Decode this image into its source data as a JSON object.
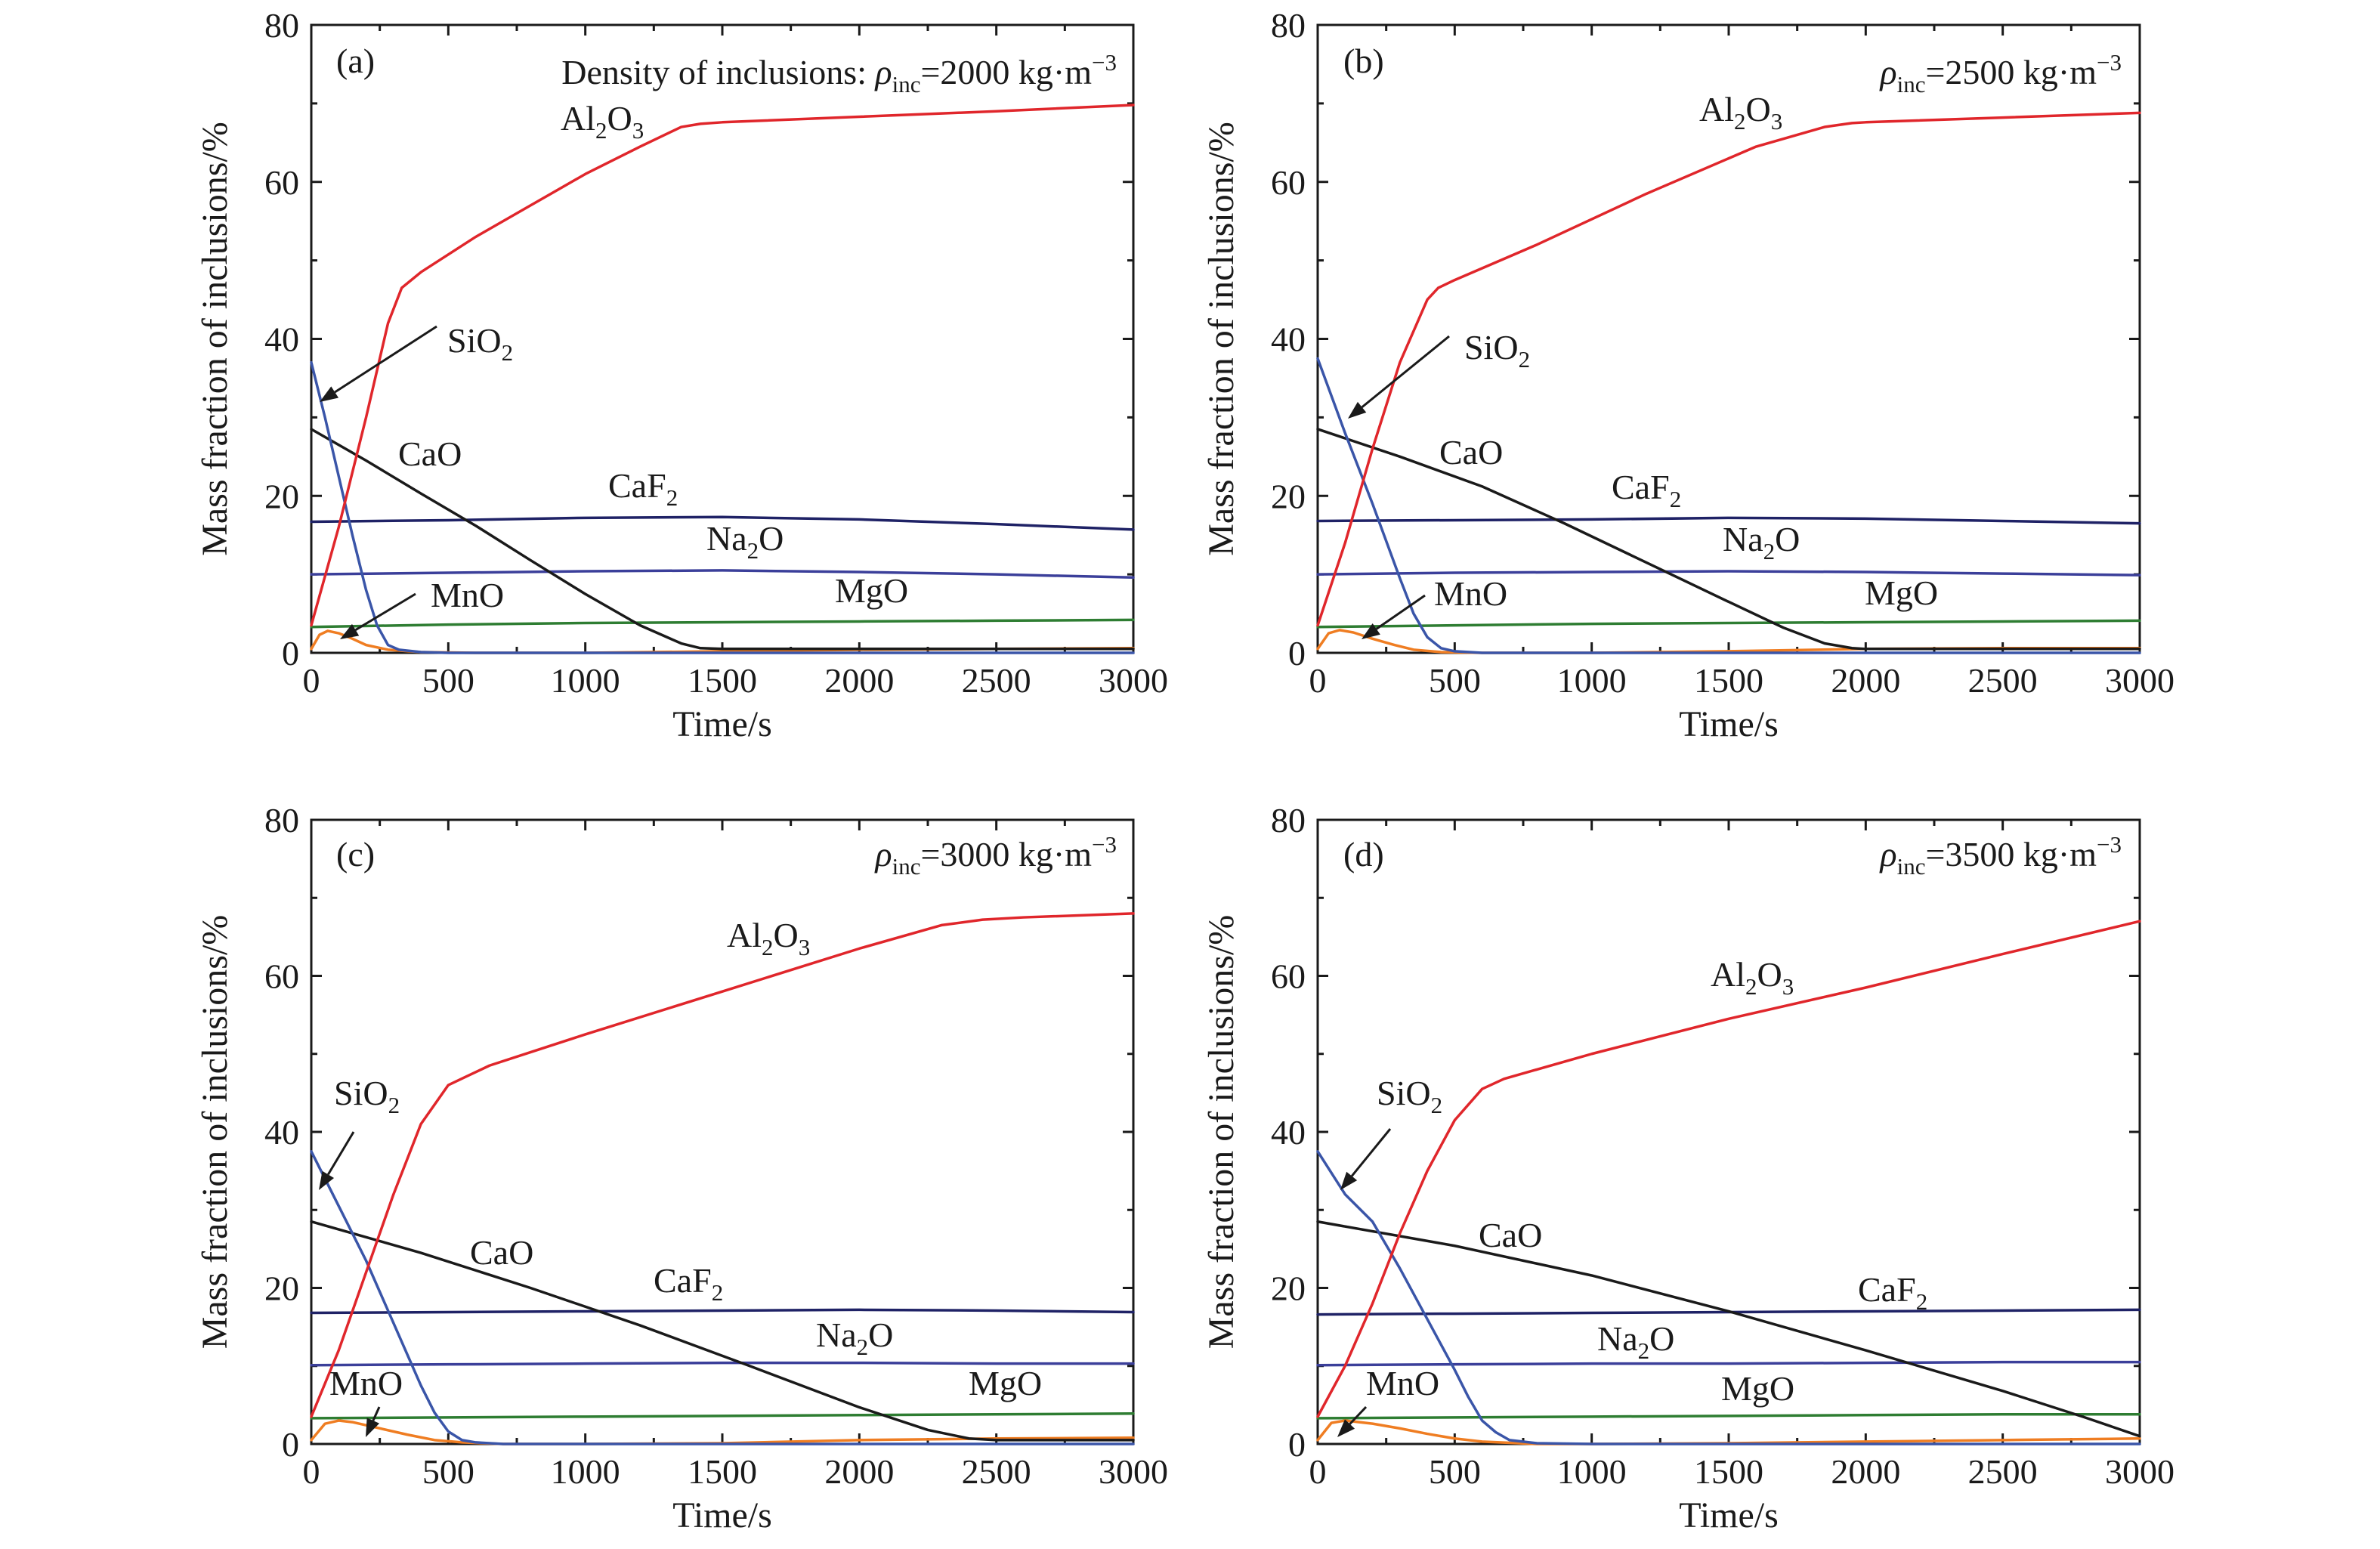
{
  "figure": {
    "panels": [
      {
        "tag": "(a)",
        "annotation": [
          {
            "t": "Density of inclusions: "
          },
          {
            "t": "ρ",
            "style": "italic"
          },
          {
            "t": "inc",
            "shift": "sub"
          },
          {
            "t": "=2000 kg·m"
          },
          {
            "t": "−3",
            "shift": "super"
          }
        ]
      },
      {
        "tag": "(b)",
        "annotation": [
          {
            "t": "ρ",
            "style": "italic"
          },
          {
            "t": "inc",
            "shift": "sub"
          },
          {
            "t": "=2500 kg·m"
          },
          {
            "t": "−3",
            "shift": "super"
          }
        ]
      },
      {
        "tag": "(c)",
        "annotation": [
          {
            "t": "ρ",
            "style": "italic"
          },
          {
            "t": "inc",
            "shift": "sub"
          },
          {
            "t": "=3000 kg·m"
          },
          {
            "t": "−3",
            "shift": "super"
          }
        ]
      },
      {
        "tag": "(d)",
        "annotation": [
          {
            "t": "ρ",
            "style": "italic"
          },
          {
            "t": "inc",
            "shift": "sub"
          },
          {
            "t": "=3500 kg·m"
          },
          {
            "t": "−3",
            "shift": "super"
          }
        ]
      }
    ]
  },
  "species_labels": {
    "Al2O3": [
      {
        "t": "Al"
      },
      {
        "t": "2",
        "shift": "sub"
      },
      {
        "t": "O"
      },
      {
        "t": "3",
        "shift": "sub"
      }
    ],
    "SiO2": [
      {
        "t": "SiO"
      },
      {
        "t": "2",
        "shift": "sub"
      }
    ],
    "CaO": [
      {
        "t": "CaO"
      }
    ],
    "CaF2": [
      {
        "t": "CaF"
      },
      {
        "t": "2",
        "shift": "sub"
      }
    ],
    "Na2O": [
      {
        "t": "Na"
      },
      {
        "t": "2",
        "shift": "sub"
      },
      {
        "t": "O"
      }
    ],
    "MgO": [
      {
        "t": "MgO"
      }
    ],
    "MnO": [
      {
        "t": "MnO"
      }
    ]
  },
  "colors": {
    "Al2O3": "#e0262b",
    "SiO2": "#3a55a8",
    "CaO": "#1a1a1a",
    "CaF2": "#1f2266",
    "Na2O": "#3b3f9a",
    "MgO": "#2e7d32",
    "MnO": "#ef7d22"
  },
  "chart_data": [
    {
      "type": "line",
      "panel": "(a)",
      "xlabel": "Time/s",
      "ylabel": "Mass fraction of inclusions/%",
      "xlim": [
        0,
        3000
      ],
      "ylim": [
        0,
        80
      ],
      "xticks": [
        0,
        500,
        1000,
        1500,
        2000,
        2500,
        3000
      ],
      "yticks": [
        0,
        20,
        40,
        60,
        80
      ],
      "grid": false,
      "series": [
        {
          "name": "Al2O3",
          "x": [
            0,
            100,
            200,
            280,
            330,
            400,
            600,
            800,
            1000,
            1200,
            1350,
            1420,
            1500,
            2000,
            2500,
            3000
          ],
          "y": [
            3.5,
            16,
            30,
            42,
            46.5,
            48.5,
            53,
            57,
            61,
            64.5,
            67,
            67.4,
            67.6,
            68.3,
            69,
            69.8
          ]
        },
        {
          "name": "SiO2",
          "x": [
            0,
            50,
            100,
            150,
            200,
            240,
            280,
            320,
            400,
            500,
            1000,
            2000,
            3000
          ],
          "y": [
            37,
            30,
            22.5,
            15,
            8,
            3.5,
            1,
            0.4,
            0.1,
            0,
            0,
            0,
            0
          ]
        },
        {
          "name": "CaO",
          "x": [
            0,
            200,
            400,
            600,
            800,
            1000,
            1200,
            1350,
            1420,
            1500,
            2000,
            2500,
            3000
          ],
          "y": [
            28.5,
            24.5,
            20.3,
            16.2,
            11.8,
            7.5,
            3.5,
            1.2,
            0.6,
            0.5,
            0.5,
            0.5,
            0.5
          ]
        },
        {
          "name": "CaF2",
          "x": [
            0,
            500,
            1000,
            1500,
            2000,
            2500,
            3000
          ],
          "y": [
            16.7,
            16.9,
            17.2,
            17.3,
            17,
            16.4,
            15.7
          ]
        },
        {
          "name": "Na2O",
          "x": [
            0,
            500,
            1000,
            1500,
            2000,
            2500,
            3000
          ],
          "y": [
            10,
            10.2,
            10.4,
            10.5,
            10.3,
            10,
            9.6
          ]
        },
        {
          "name": "MgO",
          "x": [
            0,
            500,
            1000,
            1500,
            2000,
            2500,
            3000
          ],
          "y": [
            3.3,
            3.6,
            3.8,
            3.9,
            4,
            4.1,
            4.2
          ]
        },
        {
          "name": "MnO",
          "x": [
            0,
            30,
            60,
            100,
            150,
            200,
            280,
            400,
            600,
            1000,
            1500,
            2000,
            2500,
            3000
          ],
          "y": [
            0.5,
            2.3,
            2.8,
            2.5,
            1.8,
            1,
            0.4,
            0.1,
            0,
            0,
            0.2,
            0.4,
            0.5,
            0.6
          ]
        }
      ],
      "annotations": [
        "Al2O3",
        "SiO2",
        "CaO",
        "CaF2",
        "Na2O",
        "MgO",
        "MnO"
      ]
    },
    {
      "type": "line",
      "panel": "(b)",
      "xlabel": "Time/s",
      "ylabel": "Mass fraction of inclusions/%",
      "xlim": [
        0,
        3000
      ],
      "ylim": [
        0,
        80
      ],
      "xticks": [
        0,
        500,
        1000,
        1500,
        2000,
        2500,
        3000
      ],
      "yticks": [
        0,
        20,
        40,
        60,
        80
      ],
      "grid": false,
      "series": [
        {
          "name": "Al2O3",
          "x": [
            0,
            100,
            200,
            300,
            400,
            440,
            500,
            800,
            1200,
            1600,
            1850,
            1950,
            2000,
            2500,
            3000
          ],
          "y": [
            3.5,
            14,
            26,
            37,
            45,
            46.5,
            47.5,
            52,
            58.5,
            64.5,
            67,
            67.5,
            67.6,
            68.2,
            68.8
          ]
        },
        {
          "name": "SiO2",
          "x": [
            0,
            100,
            200,
            300,
            350,
            400,
            450,
            500,
            600,
            1000,
            2000,
            3000
          ],
          "y": [
            37.5,
            28,
            19,
            9.5,
            5,
            2,
            0.6,
            0.2,
            0,
            0,
            0,
            0
          ]
        },
        {
          "name": "CaO",
          "x": [
            0,
            300,
            600,
            900,
            1200,
            1500,
            1700,
            1850,
            1950,
            2000,
            2500,
            3000
          ],
          "y": [
            28.5,
            25,
            21.2,
            16.5,
            11.5,
            6.5,
            3.2,
            1.2,
            0.6,
            0.5,
            0.5,
            0.5
          ]
        },
        {
          "name": "CaF2",
          "x": [
            0,
            500,
            1000,
            1500,
            2000,
            2500,
            3000
          ],
          "y": [
            16.8,
            16.9,
            17,
            17.2,
            17.1,
            16.8,
            16.5
          ]
        },
        {
          "name": "Na2O",
          "x": [
            0,
            500,
            1000,
            1500,
            2000,
            2500,
            3000
          ],
          "y": [
            10,
            10.2,
            10.3,
            10.4,
            10.3,
            10.1,
            9.9
          ]
        },
        {
          "name": "MgO",
          "x": [
            0,
            500,
            1000,
            1500,
            2000,
            2500,
            3000
          ],
          "y": [
            3.3,
            3.5,
            3.7,
            3.8,
            3.9,
            4,
            4.1
          ]
        },
        {
          "name": "MnO",
          "x": [
            0,
            40,
            80,
            130,
            200,
            280,
            350,
            450,
            600,
            1000,
            1500,
            2000,
            2500,
            3000
          ],
          "y": [
            0.5,
            2.5,
            2.9,
            2.6,
            1.8,
            1,
            0.4,
            0.1,
            0,
            0,
            0.2,
            0.5,
            0.6,
            0.6
          ]
        }
      ],
      "annotations": [
        "Al2O3",
        "SiO2",
        "CaO",
        "CaF2",
        "Na2O",
        "MgO",
        "MnO"
      ]
    },
    {
      "type": "line",
      "panel": "(c)",
      "xlabel": "Time/s",
      "ylabel": "Mass fraction of inclusions/%",
      "xlim": [
        0,
        3000
      ],
      "ylim": [
        0,
        80
      ],
      "xticks": [
        0,
        500,
        1000,
        1500,
        2000,
        2500,
        3000
      ],
      "yticks": [
        0,
        20,
        40,
        60,
        80
      ],
      "grid": false,
      "series": [
        {
          "name": "Al2O3",
          "x": [
            0,
            100,
            200,
            300,
            400,
            500,
            560,
            650,
            1000,
            1500,
            2000,
            2300,
            2450,
            2600,
            3000
          ],
          "y": [
            3.5,
            12,
            22,
            32,
            41,
            46,
            47,
            48.5,
            52.5,
            58,
            63.5,
            66.5,
            67.2,
            67.5,
            68
          ]
        },
        {
          "name": "SiO2",
          "x": [
            0,
            100,
            200,
            300,
            400,
            450,
            500,
            550,
            600,
            700,
            1000,
            2000,
            3000
          ],
          "y": [
            37.5,
            30.5,
            23.5,
            15.5,
            7.5,
            4,
            1.6,
            0.5,
            0.2,
            0,
            0,
            0,
            0
          ]
        },
        {
          "name": "CaO",
          "x": [
            0,
            400,
            800,
            1200,
            1600,
            2000,
            2250,
            2400,
            2500,
            3000
          ],
          "y": [
            28.5,
            24.5,
            20,
            15.2,
            10,
            4.7,
            1.8,
            0.7,
            0.5,
            0.5
          ]
        },
        {
          "name": "CaF2",
          "x": [
            0,
            500,
            1000,
            1500,
            2000,
            2500,
            3000
          ],
          "y": [
            16.8,
            16.9,
            17,
            17.1,
            17.2,
            17.1,
            16.9
          ]
        },
        {
          "name": "Na2O",
          "x": [
            0,
            500,
            1000,
            1500,
            2000,
            2500,
            3000
          ],
          "y": [
            10.1,
            10.2,
            10.3,
            10.4,
            10.4,
            10.3,
            10.3
          ]
        },
        {
          "name": "MgO",
          "x": [
            0,
            500,
            1000,
            1500,
            2000,
            2500,
            3000
          ],
          "y": [
            3.3,
            3.4,
            3.5,
            3.6,
            3.7,
            3.8,
            3.9
          ]
        },
        {
          "name": "MnO",
          "x": [
            0,
            50,
            100,
            150,
            250,
            350,
            450,
            550,
            700,
            1000,
            1500,
            2000,
            2500,
            3000
          ],
          "y": [
            0.5,
            2.6,
            3,
            2.8,
            2,
            1.2,
            0.5,
            0.2,
            0,
            0,
            0.1,
            0.5,
            0.7,
            0.8
          ]
        }
      ],
      "annotations": [
        "Al2O3",
        "SiO2",
        "CaO",
        "CaF2",
        "Na2O",
        "MgO",
        "MnO"
      ]
    },
    {
      "type": "line",
      "panel": "(d)",
      "xlabel": "Time/s",
      "ylabel": "Mass fraction of inclusions/%",
      "xlim": [
        0,
        3000
      ],
      "ylim": [
        0,
        80
      ],
      "xticks": [
        0,
        500,
        1000,
        1500,
        2000,
        2500,
        3000
      ],
      "yticks": [
        0,
        20,
        40,
        60,
        80
      ],
      "grid": false,
      "series": [
        {
          "name": "Al2O3",
          "x": [
            0,
            100,
            200,
            300,
            400,
            500,
            600,
            680,
            800,
            1000,
            1500,
            2000,
            2500,
            3000
          ],
          "y": [
            3.5,
            10,
            18,
            27,
            35,
            41.5,
            45.5,
            46.8,
            48,
            50,
            54.5,
            58.5,
            62.8,
            67
          ]
        },
        {
          "name": "SiO2",
          "x": [
            0,
            100,
            200,
            300,
            400,
            500,
            550,
            600,
            650,
            700,
            800,
            1000,
            2000,
            3000
          ],
          "y": [
            37.5,
            32,
            28.5,
            22.5,
            16,
            9.5,
            6,
            3,
            1.5,
            0.5,
            0.1,
            0,
            0,
            0
          ]
        },
        {
          "name": "CaO",
          "x": [
            0,
            500,
            1000,
            1500,
            2000,
            2500,
            2800,
            3000
          ],
          "y": [
            28.5,
            25.4,
            21.6,
            17,
            12,
            6.8,
            3.4,
            1
          ]
        },
        {
          "name": "CaF2",
          "x": [
            0,
            500,
            1000,
            1500,
            2000,
            2500,
            3000
          ],
          "y": [
            16.6,
            16.7,
            16.8,
            16.9,
            17,
            17.1,
            17.2
          ]
        },
        {
          "name": "Na2O",
          "x": [
            0,
            500,
            1000,
            1500,
            2000,
            2500,
            3000
          ],
          "y": [
            10.1,
            10.2,
            10.3,
            10.3,
            10.4,
            10.5,
            10.5
          ]
        },
        {
          "name": "MgO",
          "x": [
            0,
            500,
            1000,
            1500,
            2000,
            2500,
            3000
          ],
          "y": [
            3.3,
            3.4,
            3.5,
            3.6,
            3.7,
            3.8,
            3.8
          ]
        },
        {
          "name": "MnO",
          "x": [
            0,
            50,
            100,
            200,
            300,
            400,
            500,
            600,
            800,
            1000,
            1500,
            2000,
            2500,
            3000
          ],
          "y": [
            0.5,
            2.7,
            3,
            2.6,
            2,
            1.3,
            0.7,
            0.3,
            0,
            0,
            0.1,
            0.3,
            0.5,
            0.7
          ]
        }
      ],
      "annotations": [
        "Al2O3",
        "SiO2",
        "CaO",
        "CaF2",
        "Na2O",
        "MgO",
        "MnO"
      ]
    }
  ]
}
